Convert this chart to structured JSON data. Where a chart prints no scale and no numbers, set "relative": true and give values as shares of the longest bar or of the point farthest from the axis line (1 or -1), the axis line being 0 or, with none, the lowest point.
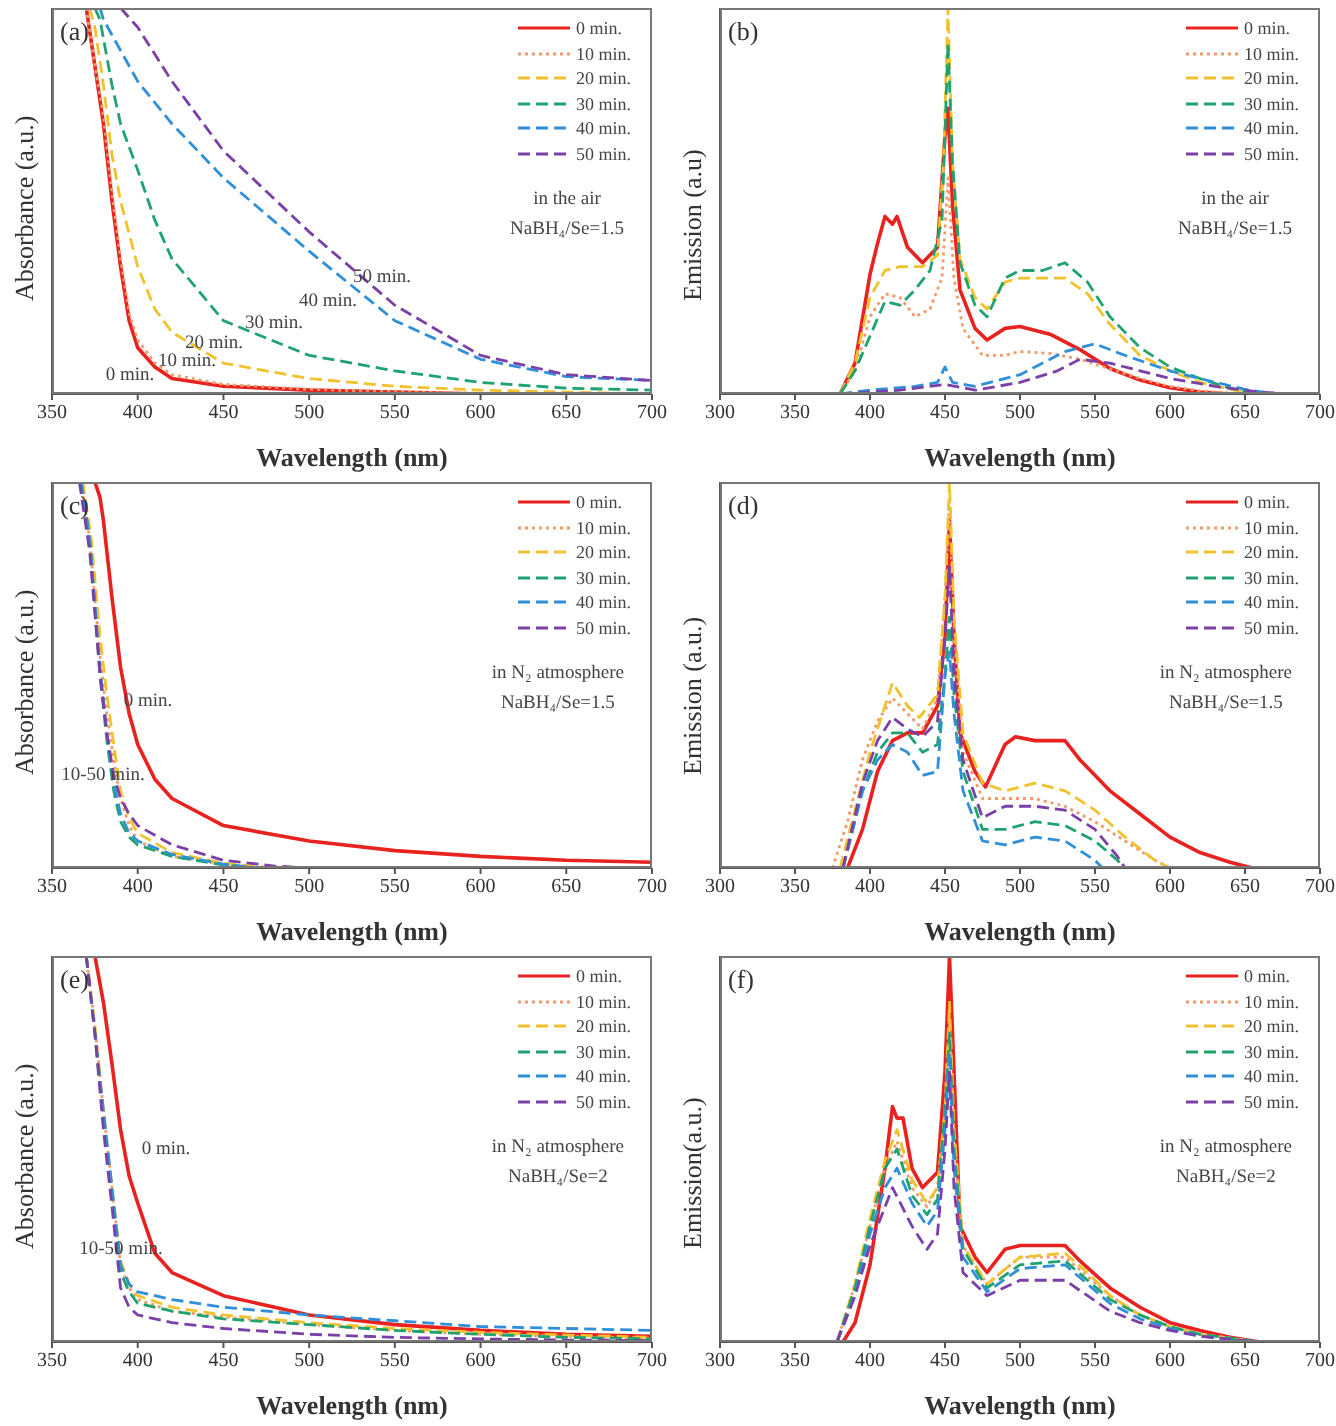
{
  "chart_data": [
    {
      "type": "line",
      "title": "(a)",
      "xlabel": "Wavelength (nm)",
      "ylabel": "Absorbance (a.u.)",
      "relative": true,
      "xlim": [
        350,
        700
      ],
      "xticks": [
        350,
        400,
        450,
        500,
        550,
        600,
        650,
        700
      ],
      "legend": "top right",
      "annotations": [
        "in the air",
        "NaBH₄/Se=1.5",
        "0 min.",
        "10 min.",
        "20 min.",
        "30 min.",
        "40 min.",
        "50 min."
      ],
      "series": [
        {
          "name": "0 min.",
          "color": "#e8231f",
          "line_style": "solid",
          "x": [
            370,
            375,
            380,
            385,
            390,
            395,
            400,
            410,
            420,
            450,
            500,
            550,
            600,
            700
          ],
          "values": [
            1,
            0.85,
            0.7,
            0.5,
            0.33,
            0.19,
            0.12,
            0.07,
            0.04,
            0.02,
            0.01,
            0.005,
            0,
            0
          ]
        },
        {
          "name": "10 min.",
          "color": "#f39a6a",
          "line_style": "dotted",
          "x": [
            370,
            375,
            380,
            385,
            390,
            395,
            400,
            410,
            420,
            450,
            500,
            550,
            600,
            700
          ],
          "values": [
            1,
            0.85,
            0.72,
            0.52,
            0.35,
            0.21,
            0.14,
            0.08,
            0.05,
            0.025,
            0.012,
            0.006,
            0.002,
            0
          ]
        },
        {
          "name": "20 min.",
          "color": "#f2c12e",
          "line_style": "dashed",
          "x": [
            372,
            375,
            380,
            385,
            390,
            400,
            410,
            420,
            450,
            500,
            550,
            600,
            650,
            700
          ],
          "values": [
            1,
            0.95,
            0.8,
            0.62,
            0.5,
            0.33,
            0.22,
            0.16,
            0.08,
            0.04,
            0.02,
            0.01,
            0.005,
            0
          ]
        },
        {
          "name": "30 min.",
          "color": "#1fa36e",
          "line_style": "dashed",
          "x": [
            375,
            378,
            385,
            390,
            400,
            410,
            420,
            450,
            500,
            550,
            600,
            650,
            700
          ],
          "values": [
            1,
            0.97,
            0.8,
            0.7,
            0.58,
            0.45,
            0.35,
            0.19,
            0.1,
            0.06,
            0.03,
            0.015,
            0.01
          ]
        },
        {
          "name": "40 min.",
          "color": "#2f8fd8",
          "line_style": "dashed",
          "x": [
            378,
            380,
            390,
            400,
            420,
            450,
            500,
            550,
            600,
            650,
            700
          ],
          "values": [
            1,
            0.97,
            0.89,
            0.81,
            0.7,
            0.56,
            0.37,
            0.19,
            0.09,
            0.045,
            0.035
          ]
        },
        {
          "name": "50 min.",
          "color": "#7b3fa8",
          "line_style": "dashed",
          "x": [
            390,
            400,
            420,
            450,
            500,
            550,
            600,
            650,
            700
          ],
          "values": [
            1,
            0.95,
            0.81,
            0.63,
            0.42,
            0.23,
            0.1,
            0.05,
            0.035
          ]
        }
      ]
    },
    {
      "type": "line",
      "title": "(b)",
      "xlabel": "Wavelength (nm)",
      "ylabel": "Emission (a.u)",
      "relative": true,
      "xlim": [
        300,
        700
      ],
      "xticks": [
        300,
        350,
        400,
        450,
        500,
        550,
        600,
        650,
        700
      ],
      "legend": "top right",
      "annotations": [
        "in the air",
        "NaBH₄/Se=1.5"
      ],
      "series": [
        {
          "name": "0 min.",
          "color": "#e8231f",
          "line_style": "solid",
          "x": [
            380,
            390,
            400,
            405,
            410,
            415,
            418,
            425,
            435,
            445,
            450,
            452,
            455,
            460,
            470,
            478,
            490,
            500,
            520,
            540,
            560,
            580,
            600,
            620,
            640
          ],
          "values": [
            0,
            0.08,
            0.31,
            0.39,
            0.46,
            0.44,
            0.46,
            0.38,
            0.34,
            0.38,
            0.67,
            0.74,
            0.49,
            0.27,
            0.17,
            0.14,
            0.17,
            0.175,
            0.155,
            0.115,
            0.066,
            0.036,
            0.016,
            0.005,
            0
          ]
        },
        {
          "name": "10 min.",
          "color": "#f39a6a",
          "line_style": "dotted",
          "x": [
            380,
            390,
            400,
            410,
            420,
            430,
            440,
            448,
            452,
            456,
            462,
            475,
            490,
            500,
            520,
            540,
            560,
            580,
            600,
            620,
            650
          ],
          "values": [
            0,
            0.06,
            0.2,
            0.26,
            0.25,
            0.2,
            0.22,
            0.3,
            0.56,
            0.3,
            0.17,
            0.1,
            0.1,
            0.11,
            0.105,
            0.09,
            0.065,
            0.04,
            0.02,
            0.008,
            0
          ]
        },
        {
          "name": "20 min.",
          "color": "#f2c12e",
          "line_style": "dashed",
          "x": [
            380,
            390,
            400,
            410,
            420,
            435,
            445,
            449,
            452,
            455,
            460,
            470,
            478,
            490,
            500,
            530,
            545,
            560,
            580,
            600,
            620,
            640,
            660
          ],
          "values": [
            0,
            0.08,
            0.25,
            0.32,
            0.33,
            0.33,
            0.36,
            0.6,
            1,
            0.6,
            0.35,
            0.25,
            0.22,
            0.29,
            0.3,
            0.3,
            0.26,
            0.18,
            0.1,
            0.06,
            0.03,
            0.012,
            0
          ]
        },
        {
          "name": "30 min.",
          "color": "#1fa36e",
          "line_style": "dashed",
          "x": [
            380,
            390,
            400,
            410,
            420,
            430,
            440,
            448,
            452,
            455,
            460,
            470,
            478,
            490,
            500,
            515,
            530,
            545,
            560,
            580,
            600,
            620,
            640,
            660
          ],
          "values": [
            0,
            0.06,
            0.15,
            0.24,
            0.23,
            0.27,
            0.32,
            0.45,
            0.91,
            0.6,
            0.34,
            0.23,
            0.2,
            0.3,
            0.32,
            0.32,
            0.34,
            0.29,
            0.2,
            0.12,
            0.07,
            0.04,
            0.015,
            0
          ]
        },
        {
          "name": "40 min.",
          "color": "#2f8fd8",
          "line_style": "dashed",
          "x": [
            380,
            400,
            430,
            445,
            450,
            455,
            470,
            500,
            530,
            550,
            570,
            600,
            620,
            650,
            670
          ],
          "values": [
            0,
            0.01,
            0.02,
            0.03,
            0.07,
            0.03,
            0.02,
            0.05,
            0.11,
            0.13,
            0.1,
            0.06,
            0.04,
            0.012,
            0
          ]
        },
        {
          "name": "50 min.",
          "color": "#7b3fa8",
          "line_style": "dashed",
          "x": [
            380,
            420,
            450,
            470,
            500,
            525,
            540,
            560,
            580,
            600,
            630,
            660,
            680
          ],
          "values": [
            0,
            0.01,
            0.025,
            0.01,
            0.03,
            0.06,
            0.09,
            0.08,
            0.06,
            0.04,
            0.02,
            0.005,
            0
          ]
        }
      ]
    },
    {
      "type": "line",
      "title": "(c)",
      "xlabel": "Wavelength (nm)",
      "ylabel": "Absorbance (a.u.)",
      "relative": true,
      "xlim": [
        350,
        700
      ],
      "xticks": [
        350,
        400,
        450,
        500,
        550,
        600,
        650,
        700
      ],
      "legend": "top right",
      "annotations": [
        "in N₂ atmosphere",
        "NaBH₄/Se=1.5",
        "0 min.",
        "10-50 min."
      ],
      "series": [
        {
          "name": "0 min.",
          "color": "#e8231f",
          "line_style": "solid",
          "x": [
            370,
            375,
            378,
            380,
            385,
            390,
            395,
            400,
            410,
            420,
            450,
            500,
            550,
            600,
            650,
            700
          ],
          "values": [
            1,
            1,
            0.96,
            0.9,
            0.7,
            0.52,
            0.4,
            0.32,
            0.23,
            0.18,
            0.11,
            0.07,
            0.045,
            0.03,
            0.02,
            0.015
          ]
        },
        {
          "name": "10 min.",
          "color": "#f39a6a",
          "line_style": "dotted",
          "x": [
            367,
            372,
            378,
            382,
            386,
            390,
            395,
            400,
            420,
            450,
            470
          ],
          "values": [
            1,
            0.85,
            0.55,
            0.4,
            0.28,
            0.18,
            0.11,
            0.07,
            0.03,
            0.01,
            0
          ]
        },
        {
          "name": "20 min.",
          "color": "#f2c12e",
          "line_style": "dashed",
          "x": [
            368,
            373,
            378,
            382,
            386,
            390,
            395,
            400,
            420,
            450,
            480
          ],
          "values": [
            1,
            0.85,
            0.6,
            0.45,
            0.32,
            0.2,
            0.13,
            0.09,
            0.04,
            0.012,
            0
          ]
        },
        {
          "name": "30 min.",
          "color": "#1fa36e",
          "line_style": "dashed",
          "x": [
            367,
            372,
            378,
            382,
            386,
            390,
            395,
            400,
            420,
            450,
            470
          ],
          "values": [
            1,
            0.85,
            0.5,
            0.33,
            0.2,
            0.12,
            0.08,
            0.06,
            0.03,
            0.008,
            0
          ]
        },
        {
          "name": "40 min.",
          "color": "#2f8fd8",
          "line_style": "dashed",
          "x": [
            367,
            372,
            378,
            382,
            386,
            390,
            395,
            400,
            420,
            450,
            470
          ],
          "values": [
            1,
            0.85,
            0.52,
            0.35,
            0.22,
            0.14,
            0.09,
            0.07,
            0.035,
            0.01,
            0
          ]
        },
        {
          "name": "50 min.",
          "color": "#7b3fa8",
          "line_style": "dashed",
          "x": [
            366,
            372,
            378,
            382,
            386,
            390,
            395,
            400,
            420,
            450,
            480,
            500
          ],
          "values": [
            1,
            0.82,
            0.5,
            0.35,
            0.24,
            0.18,
            0.14,
            0.11,
            0.06,
            0.02,
            0.005,
            0
          ]
        }
      ]
    },
    {
      "type": "line",
      "title": "(d)",
      "xlabel": "Wavelength (nm)",
      "ylabel": "Emission (a.u.)",
      "relative": true,
      "xlim": [
        300,
        700
      ],
      "xticks": [
        300,
        350,
        400,
        450,
        500,
        550,
        600,
        650,
        700
      ],
      "legend": "top right",
      "annotations": [
        "in N₂ atmosphere",
        "NaBH₄/Se=1.5"
      ],
      "series": [
        {
          "name": "0 min.",
          "color": "#e8231f",
          "line_style": "solid",
          "x": [
            385,
            395,
            405,
            415,
            425,
            435,
            445,
            450,
            453,
            456,
            460,
            470,
            477,
            490,
            497,
            510,
            530,
            540,
            560,
            580,
            600,
            620,
            640,
            655
          ],
          "values": [
            0,
            0.1,
            0.25,
            0.33,
            0.35,
            0.35,
            0.42,
            0.6,
            0.9,
            0.6,
            0.35,
            0.25,
            0.21,
            0.32,
            0.34,
            0.33,
            0.33,
            0.28,
            0.2,
            0.14,
            0.08,
            0.04,
            0.015,
            0
          ]
        },
        {
          "name": "10 min.",
          "color": "#f39a6a",
          "line_style": "dotted",
          "x": [
            375,
            385,
            395,
            405,
            415,
            425,
            435,
            445,
            450,
            453,
            456,
            462,
            475,
            490,
            510,
            530,
            550,
            570,
            590,
            600
          ],
          "values": [
            0,
            0.12,
            0.28,
            0.38,
            0.44,
            0.4,
            0.36,
            0.44,
            0.7,
            0.95,
            0.6,
            0.3,
            0.18,
            0.18,
            0.18,
            0.16,
            0.12,
            0.07,
            0.02,
            0
          ]
        },
        {
          "name": "20 min.",
          "color": "#f2c12e",
          "line_style": "dashed",
          "x": [
            380,
            390,
            400,
            410,
            415,
            425,
            433,
            445,
            450,
            453,
            456,
            462,
            475,
            490,
            510,
            530,
            550,
            570,
            590,
            600
          ],
          "values": [
            0,
            0.15,
            0.3,
            0.42,
            0.48,
            0.42,
            0.39,
            0.45,
            0.7,
            1,
            0.65,
            0.35,
            0.22,
            0.2,
            0.22,
            0.2,
            0.15,
            0.08,
            0.02,
            0
          ]
        },
        {
          "name": "30 min.",
          "color": "#1fa36e",
          "line_style": "dashed",
          "x": [
            382,
            395,
            405,
            415,
            425,
            435,
            445,
            450,
            453,
            456,
            462,
            475,
            490,
            510,
            530,
            550,
            565,
            570
          ],
          "values": [
            0,
            0.2,
            0.3,
            0.35,
            0.35,
            0.3,
            0.32,
            0.5,
            0.65,
            0.45,
            0.25,
            0.1,
            0.1,
            0.12,
            0.11,
            0.07,
            0.02,
            0
          ]
        },
        {
          "name": "40 min.",
          "color": "#2f8fd8",
          "line_style": "dashed",
          "x": [
            382,
            395,
            405,
            415,
            425,
            435,
            445,
            450,
            453,
            456,
            462,
            475,
            490,
            510,
            530,
            550,
            555
          ],
          "values": [
            0,
            0.2,
            0.28,
            0.32,
            0.3,
            0.24,
            0.25,
            0.5,
            0.56,
            0.4,
            0.2,
            0.07,
            0.06,
            0.08,
            0.07,
            0.02,
            0
          ]
        },
        {
          "name": "50 min.",
          "color": "#7b3fa8",
          "line_style": "dashed",
          "x": [
            382,
            395,
            405,
            415,
            425,
            435,
            445,
            450,
            453,
            456,
            462,
            475,
            490,
            510,
            530,
            550,
            565,
            570
          ],
          "values": [
            0,
            0.22,
            0.33,
            0.39,
            0.36,
            0.34,
            0.38,
            0.6,
            0.78,
            0.5,
            0.28,
            0.13,
            0.16,
            0.16,
            0.15,
            0.1,
            0.03,
            0
          ]
        }
      ]
    },
    {
      "type": "line",
      "title": "(e)",
      "xlabel": "Wavelength (nm)",
      "ylabel": "Absorbance (a.u.)",
      "relative": true,
      "xlim": [
        350,
        700
      ],
      "xticks": [
        350,
        400,
        450,
        500,
        550,
        600,
        650,
        700
      ],
      "legend": "top right",
      "annotations": [
        "in N₂ atmosphere",
        "NaBH₄/Se=2",
        "0 min.",
        "10-50 min."
      ],
      "series": [
        {
          "name": "0 min.",
          "color": "#e8231f",
          "line_style": "solid",
          "x": [
            375,
            380,
            385,
            390,
            395,
            400,
            410,
            420,
            450,
            500,
            550,
            600,
            650,
            700
          ],
          "values": [
            1,
            0.88,
            0.72,
            0.55,
            0.43,
            0.36,
            0.23,
            0.18,
            0.12,
            0.07,
            0.045,
            0.03,
            0.02,
            0.015
          ]
        },
        {
          "name": "10 min.",
          "color": "#f39a6a",
          "line_style": "dotted",
          "x": [
            370,
            375,
            380,
            385,
            390,
            395,
            400,
            420,
            450,
            500,
            550,
            600,
            650,
            700
          ],
          "values": [
            1,
            0.82,
            0.6,
            0.4,
            0.2,
            0.14,
            0.11,
            0.08,
            0.065,
            0.045,
            0.03,
            0.02,
            0.015,
            0.01
          ]
        },
        {
          "name": "20 min.",
          "color": "#f2c12e",
          "line_style": "dashed",
          "x": [
            370,
            375,
            380,
            385,
            390,
            395,
            400,
            420,
            450,
            500,
            550,
            600,
            650,
            700
          ],
          "values": [
            1,
            0.82,
            0.6,
            0.4,
            0.21,
            0.15,
            0.12,
            0.09,
            0.07,
            0.05,
            0.035,
            0.025,
            0.018,
            0.012
          ]
        },
        {
          "name": "30 min.",
          "color": "#1fa36e",
          "line_style": "dashed",
          "x": [
            370,
            375,
            380,
            385,
            390,
            395,
            400,
            420,
            450,
            500,
            550,
            600,
            650,
            700
          ],
          "values": [
            1,
            0.8,
            0.58,
            0.38,
            0.18,
            0.13,
            0.1,
            0.08,
            0.06,
            0.045,
            0.03,
            0.02,
            0.012,
            0.008
          ]
        },
        {
          "name": "40 min.",
          "color": "#2f8fd8",
          "line_style": "dashed",
          "x": [
            370,
            375,
            380,
            385,
            390,
            395,
            400,
            420,
            450,
            500,
            550,
            600,
            650,
            700
          ],
          "values": [
            1,
            0.8,
            0.6,
            0.4,
            0.2,
            0.15,
            0.13,
            0.11,
            0.09,
            0.07,
            0.055,
            0.04,
            0.035,
            0.03
          ]
        },
        {
          "name": "50 min.",
          "color": "#7b3fa8",
          "line_style": "dashed",
          "x": [
            370,
            375,
            380,
            385,
            390,
            395,
            400,
            420,
            450,
            500,
            550,
            600,
            650,
            700
          ],
          "values": [
            1,
            0.8,
            0.55,
            0.35,
            0.14,
            0.09,
            0.07,
            0.05,
            0.035,
            0.02,
            0.012,
            0.008,
            0.005,
            0.004
          ]
        }
      ]
    },
    {
      "type": "line",
      "title": "(f)",
      "xlabel": "Wavelength (nm)",
      "ylabel": "Emission(a.u.)",
      "relative": true,
      "xlim": [
        300,
        700
      ],
      "xticks": [
        300,
        350,
        400,
        450,
        500,
        550,
        600,
        650,
        700
      ],
      "legend": "top right",
      "annotations": [
        "in N₂ atmosphere",
        "NaBH₄/Se=2"
      ],
      "series": [
        {
          "name": "0 min.",
          "color": "#e8231f",
          "line_style": "solid",
          "x": [
            382,
            390,
            400,
            410,
            415,
            418,
            422,
            428,
            435,
            445,
            450,
            453,
            456,
            460,
            470,
            478,
            490,
            500,
            510,
            530,
            540,
            560,
            580,
            600,
            620,
            640,
            660
          ],
          "values": [
            0,
            0.05,
            0.2,
            0.45,
            0.61,
            0.58,
            0.58,
            0.45,
            0.4,
            0.44,
            0.7,
            1,
            0.7,
            0.3,
            0.22,
            0.18,
            0.24,
            0.25,
            0.25,
            0.25,
            0.21,
            0.14,
            0.09,
            0.05,
            0.03,
            0.012,
            0
          ]
        },
        {
          "name": "10 min.",
          "color": "#f39a6a",
          "line_style": "dotted",
          "x": [
            378,
            390,
            400,
            410,
            418,
            428,
            438,
            445,
            450,
            453,
            456,
            462,
            478,
            500,
            530,
            545,
            560,
            580,
            600,
            620,
            650,
            660
          ],
          "values": [
            0,
            0.15,
            0.3,
            0.45,
            0.52,
            0.4,
            0.35,
            0.4,
            0.6,
            0.85,
            0.55,
            0.25,
            0.15,
            0.22,
            0.22,
            0.17,
            0.12,
            0.07,
            0.04,
            0.02,
            0.005,
            0
          ]
        },
        {
          "name": "20 min.",
          "color": "#f2c12e",
          "line_style": "dashed",
          "x": [
            378,
            390,
            400,
            410,
            418,
            428,
            438,
            445,
            450,
            453,
            456,
            462,
            478,
            500,
            530,
            545,
            560,
            580,
            600,
            620,
            650,
            660
          ],
          "values": [
            0,
            0.15,
            0.32,
            0.47,
            0.55,
            0.42,
            0.36,
            0.4,
            0.6,
            0.88,
            0.55,
            0.25,
            0.15,
            0.22,
            0.23,
            0.18,
            0.12,
            0.07,
            0.04,
            0.02,
            0.005,
            0
          ]
        },
        {
          "name": "30 min.",
          "color": "#1fa36e",
          "line_style": "dashed",
          "x": [
            378,
            390,
            400,
            410,
            418,
            428,
            438,
            445,
            450,
            453,
            456,
            462,
            478,
            500,
            530,
            545,
            560,
            580,
            600,
            620,
            650,
            660
          ],
          "values": [
            0,
            0.14,
            0.3,
            0.45,
            0.5,
            0.38,
            0.33,
            0.37,
            0.6,
            0.8,
            0.5,
            0.24,
            0.14,
            0.2,
            0.21,
            0.16,
            0.11,
            0.07,
            0.04,
            0.02,
            0.005,
            0
          ]
        },
        {
          "name": "40 min.",
          "color": "#2f8fd8",
          "line_style": "dashed",
          "x": [
            378,
            390,
            400,
            410,
            418,
            428,
            438,
            445,
            450,
            453,
            456,
            462,
            478,
            500,
            530,
            545,
            560,
            580,
            600,
            620,
            650,
            660
          ],
          "values": [
            0,
            0.12,
            0.28,
            0.4,
            0.45,
            0.36,
            0.3,
            0.34,
            0.55,
            0.75,
            0.45,
            0.22,
            0.13,
            0.19,
            0.2,
            0.15,
            0.1,
            0.06,
            0.035,
            0.015,
            0.004,
            0
          ]
        },
        {
          "name": "50 min.",
          "color": "#7b3fa8",
          "line_style": "dashed",
          "x": [
            378,
            390,
            400,
            410,
            415,
            428,
            438,
            445,
            450,
            453,
            456,
            462,
            478,
            500,
            530,
            545,
            560,
            580,
            600,
            620,
            650,
            660
          ],
          "values": [
            0,
            0.12,
            0.25,
            0.35,
            0.4,
            0.3,
            0.24,
            0.28,
            0.5,
            0.7,
            0.4,
            0.18,
            0.12,
            0.16,
            0.16,
            0.12,
            0.08,
            0.05,
            0.03,
            0.015,
            0.003,
            0
          ]
        }
      ]
    }
  ]
}
